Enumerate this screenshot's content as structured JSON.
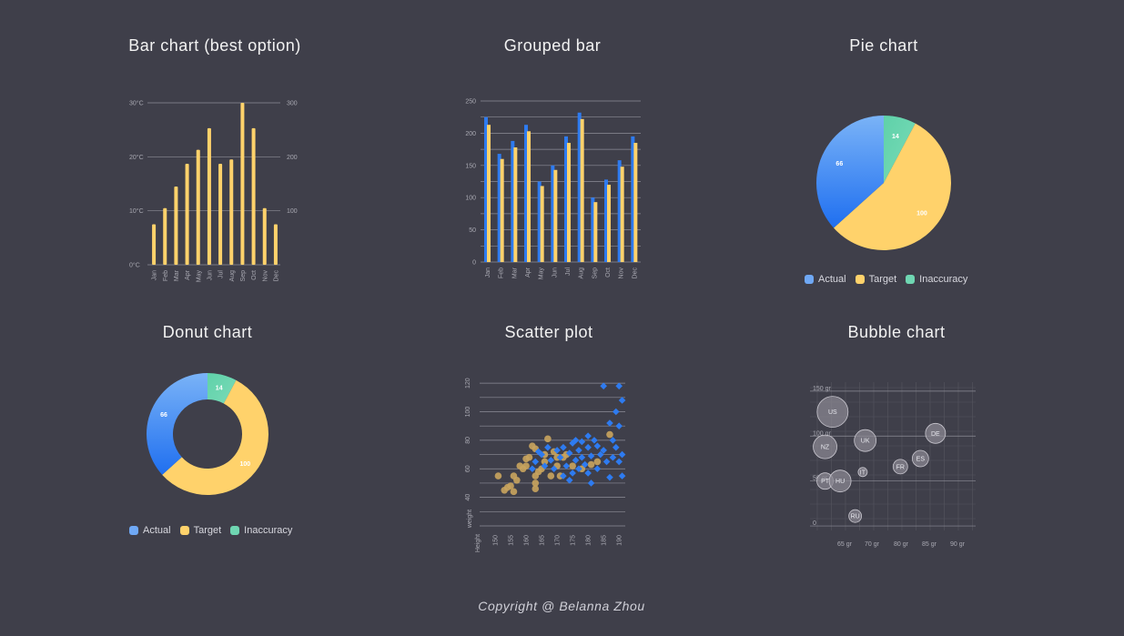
{
  "colors": {
    "background": "#3f3f4a",
    "actual": "#2e7bf0",
    "target": "#ffd26b",
    "inaccuracy": "#6fd6b2",
    "bubble": "#8a8791",
    "scatter_a": "#c9a45e",
    "scatter_b": "#2e7bf0"
  },
  "footer": "Copyright @ Belanna Zhou",
  "chart_data": [
    {
      "type": "bar",
      "title": "Bar chart (best option)",
      "categories": [
        "Jan",
        "Feb",
        "Mar",
        "Apr",
        "May",
        "Jun",
        "Jul",
        "Aug",
        "Sep",
        "Oct",
        "Nov",
        "Dec"
      ],
      "values": [
        75,
        105,
        145,
        187,
        213,
        253,
        187,
        195,
        300,
        253,
        105,
        75
      ],
      "ylim": [
        0,
        300
      ],
      "left_ticks": [
        "0°C",
        "10°C",
        "20°C",
        "30°C"
      ],
      "right_ticks": [
        "100",
        "200",
        "300"
      ],
      "grid": true
    },
    {
      "type": "bar",
      "title": "Grouped bar",
      "categories": [
        "Jan",
        "Feb",
        "Mar",
        "Apr",
        "May",
        "Jun",
        "Jul",
        "Aug",
        "Sep",
        "Oct",
        "Nov",
        "Dec"
      ],
      "series": [
        {
          "values": [
            225,
            168,
            188,
            213,
            125,
            150,
            195,
            232,
            100,
            128,
            158,
            195
          ]
        },
        {
          "values": [
            213,
            160,
            178,
            203,
            118,
            143,
            185,
            222,
            93,
            120,
            148,
            185
          ]
        }
      ],
      "ylim": [
        0,
        250
      ],
      "yticks": [
        0,
        50,
        100,
        150,
        200,
        250
      ],
      "grid": true
    },
    {
      "type": "pie",
      "title": "Pie chart",
      "slices": [
        {
          "label": "Actual",
          "value": 66
        },
        {
          "label": "Target",
          "value": 100
        },
        {
          "label": "Inaccuracy",
          "value": 14
        }
      ],
      "legend": [
        "Actual",
        "Target",
        "Inaccuracy"
      ]
    },
    {
      "type": "pie",
      "subtype": "donut",
      "title": "Donut chart",
      "slices": [
        {
          "label": "Actual",
          "value": 66
        },
        {
          "label": "Target",
          "value": 100
        },
        {
          "label": "Inaccuracy",
          "value": 14
        }
      ],
      "legend": [
        "Actual",
        "Target",
        "Inaccuracy"
      ]
    },
    {
      "type": "scatter",
      "title": "Scatter plot",
      "xlabel": "Height",
      "ylabel": "weight",
      "xlim": [
        145,
        192
      ],
      "ylim": [
        20,
        122
      ],
      "xticks": [
        150,
        155,
        160,
        165,
        170,
        175,
        180,
        185,
        190
      ],
      "yticks": [
        40,
        60,
        80,
        100,
        120
      ],
      "series": [
        {
          "values": [
            [
              151,
              55
            ],
            [
              153,
              45
            ],
            [
              154,
              47
            ],
            [
              155,
              48
            ],
            [
              156,
              44
            ],
            [
              156,
              55
            ],
            [
              157,
              52
            ],
            [
              158,
              62
            ],
            [
              159,
              60
            ],
            [
              160,
              67
            ],
            [
              160,
              62
            ],
            [
              161,
              68
            ],
            [
              162,
              76
            ],
            [
              163,
              55
            ],
            [
              163,
              50
            ],
            [
              163,
              46
            ],
            [
              164,
              58
            ],
            [
              165,
              60
            ],
            [
              166,
              65
            ],
            [
              167,
              81
            ],
            [
              168,
              55
            ],
            [
              169,
              72
            ],
            [
              170,
              62
            ],
            [
              171,
              55
            ],
            [
              172,
              68
            ],
            [
              173,
              70
            ],
            [
              175,
              62
            ],
            [
              178,
              60
            ],
            [
              181,
              63
            ],
            [
              183,
              65
            ],
            [
              187,
              84
            ],
            [
              163,
              74
            ],
            [
              166,
              70
            ],
            [
              170,
              68
            ]
          ]
        },
        {
          "values": [
            [
              162,
              60
            ],
            [
              163,
              65
            ],
            [
              164,
              72
            ],
            [
              165,
              70
            ],
            [
              166,
              62
            ],
            [
              167,
              75
            ],
            [
              168,
              66
            ],
            [
              169,
              60
            ],
            [
              170,
              73
            ],
            [
              171,
              68
            ],
            [
              172,
              55
            ],
            [
              172,
              75
            ],
            [
              173,
              62
            ],
            [
              174,
              52
            ],
            [
              174,
              71
            ],
            [
              175,
              57
            ],
            [
              175,
              78
            ],
            [
              176,
              80
            ],
            [
              176,
              66
            ],
            [
              177,
              60
            ],
            [
              177,
              73
            ],
            [
              178,
              79
            ],
            [
              178,
              68
            ],
            [
              179,
              63
            ],
            [
              180,
              83
            ],
            [
              180,
              57
            ],
            [
              180,
              75
            ],
            [
              181,
              50
            ],
            [
              181,
              69
            ],
            [
              182,
              80
            ],
            [
              183,
              76
            ],
            [
              183,
              60
            ],
            [
              184,
              70
            ],
            [
              185,
              73
            ],
            [
              185,
              118
            ],
            [
              186,
              65
            ],
            [
              187,
              92
            ],
            [
              187,
              54
            ],
            [
              188,
              80
            ],
            [
              188,
              68
            ],
            [
              189,
              100
            ],
            [
              189,
              75
            ],
            [
              190,
              118
            ],
            [
              190,
              90
            ],
            [
              190,
              65
            ],
            [
              191,
              108
            ],
            [
              191,
              70
            ],
            [
              191,
              55
            ]
          ]
        }
      ],
      "grid": true
    },
    {
      "type": "scatter",
      "subtype": "bubble",
      "title": "Bubble chart",
      "xlim": [
        62,
        95
      ],
      "ylim": [
        -5,
        160
      ],
      "xticks": [
        "65 gr",
        "70 gr",
        "80 gr",
        "85 gr",
        "90 gr"
      ],
      "yticks": [
        "0",
        "50 gr",
        "100 gr",
        "150 gr"
      ],
      "bubbles": [
        {
          "label": "US",
          "x": 66.5,
          "y": 127,
          "r": 17
        },
        {
          "label": "UK",
          "x": 73,
          "y": 95,
          "r": 12
        },
        {
          "label": "DE",
          "x": 87,
          "y": 103,
          "r": 11
        },
        {
          "label": "NZ",
          "x": 65,
          "y": 88,
          "r": 13
        },
        {
          "label": "ES",
          "x": 84,
          "y": 75,
          "r": 9
        },
        {
          "label": "FR",
          "x": 80,
          "y": 66,
          "r": 8
        },
        {
          "label": "IT",
          "x": 72.5,
          "y": 60,
          "r": 5
        },
        {
          "label": "PT",
          "x": 65,
          "y": 50,
          "r": 9
        },
        {
          "label": "HU",
          "x": 68,
          "y": 50,
          "r": 12
        },
        {
          "label": "RU",
          "x": 71,
          "y": 11,
          "r": 7
        }
      ],
      "grid": true
    }
  ]
}
